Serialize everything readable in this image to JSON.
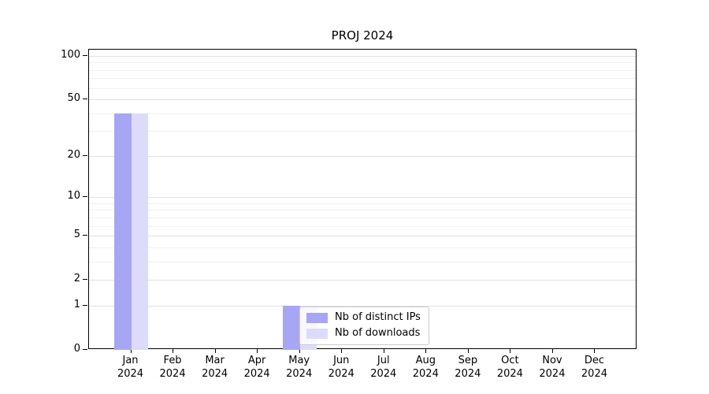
{
  "chart_data": {
    "type": "bar",
    "title": "PROJ 2024",
    "categories": [
      "Jan",
      "Feb",
      "Mar",
      "Apr",
      "May",
      "Jun",
      "Jul",
      "Aug",
      "Sep",
      "Oct",
      "Nov",
      "Dec"
    ],
    "category_year": "2024",
    "series": [
      {
        "name": "Nb of distinct IPs",
        "color": "#a6a6f4",
        "values": [
          40,
          0,
          0,
          0,
          1,
          0,
          0,
          0,
          0,
          0,
          0,
          0
        ]
      },
      {
        "name": "Nb of downloads",
        "color": "#dcdcfa",
        "values": [
          40,
          0,
          0,
          0,
          1,
          0,
          0,
          0,
          0,
          0,
          0,
          0
        ]
      }
    ],
    "yscale": "log1p",
    "ylim": [
      0,
      100
    ],
    "yticks": [
      100,
      50,
      20,
      10,
      5,
      2,
      1,
      0
    ],
    "yticks_minor": [
      90,
      80,
      70,
      60,
      40,
      30,
      9,
      8,
      7,
      6,
      4,
      3
    ],
    "grid": true,
    "legend": {
      "entries": [
        "Nb of distinct IPs",
        "Nb of downloads"
      ],
      "position": "inside-bottom-center"
    }
  },
  "colors": {
    "grid_major": "#e2e2e2",
    "grid_minor": "#f1f1f1",
    "spine": "#000000",
    "text": "#000000",
    "legend_border": "#cccccc"
  }
}
